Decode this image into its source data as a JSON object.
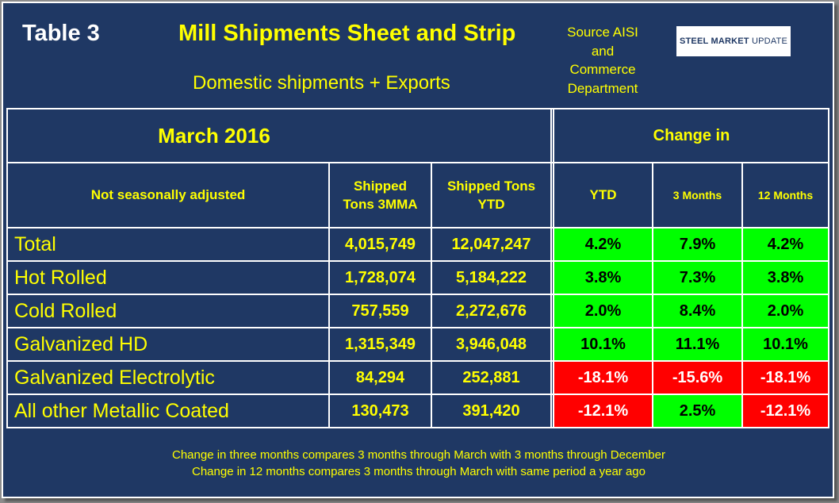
{
  "header": {
    "table_label": "Table 3",
    "title": "Mill Shipments Sheet and Strip",
    "subtitle": "Domestic shipments + Exports",
    "source": [
      "Source AISI",
      "and",
      "Commerce",
      "Department"
    ],
    "logo": {
      "bold": "STEEL MARKET",
      "light": "UPDATE"
    }
  },
  "period": "March 2016",
  "change_header": "Change in",
  "columns": {
    "label": "Not seasonally adjusted",
    "mma": [
      "Shipped",
      "Tons 3MMA"
    ],
    "ytd_tons": [
      "Shipped Tons",
      "YTD"
    ],
    "ytd": "YTD",
    "m3": "3 Months",
    "m12": "12 Months"
  },
  "rows": [
    {
      "label": "Total",
      "mma": "4,015,749",
      "ytd_tons": "12,047,247",
      "ytd": "4.2%",
      "m3": "7.9%",
      "m12": "4.2%"
    },
    {
      "label": "Hot Rolled",
      "mma": "1,728,074",
      "ytd_tons": "5,184,222",
      "ytd": "3.8%",
      "m3": "7.3%",
      "m12": "3.8%"
    },
    {
      "label": "Cold Rolled",
      "mma": "757,559",
      "ytd_tons": "2,272,676",
      "ytd": "2.0%",
      "m3": "8.4%",
      "m12": "2.0%"
    },
    {
      "label": "Galvanized HD",
      "mma": "1,315,349",
      "ytd_tons": "3,946,048",
      "ytd": "10.1%",
      "m3": "11.1%",
      "m12": "10.1%"
    },
    {
      "label": "Galvanized Electrolytic",
      "mma": "84,294",
      "ytd_tons": "252,881",
      "ytd": "-18.1%",
      "m3": "-15.6%",
      "m12": "-18.1%"
    },
    {
      "label": "All other Metallic Coated",
      "mma": "130,473",
      "ytd_tons": "391,420",
      "ytd": "-12.1%",
      "m3": "2.5%",
      "m12": "-12.1%"
    }
  ],
  "colors": {
    "positive": "#00ff00",
    "negative": "#ff0000",
    "background": "#1f3864",
    "text": "#ffff00"
  },
  "footnotes": [
    "Change in three months compares 3 months through March with 3 months through December",
    "Change in 12 months compares 3 months through March with same period a year ago"
  ]
}
